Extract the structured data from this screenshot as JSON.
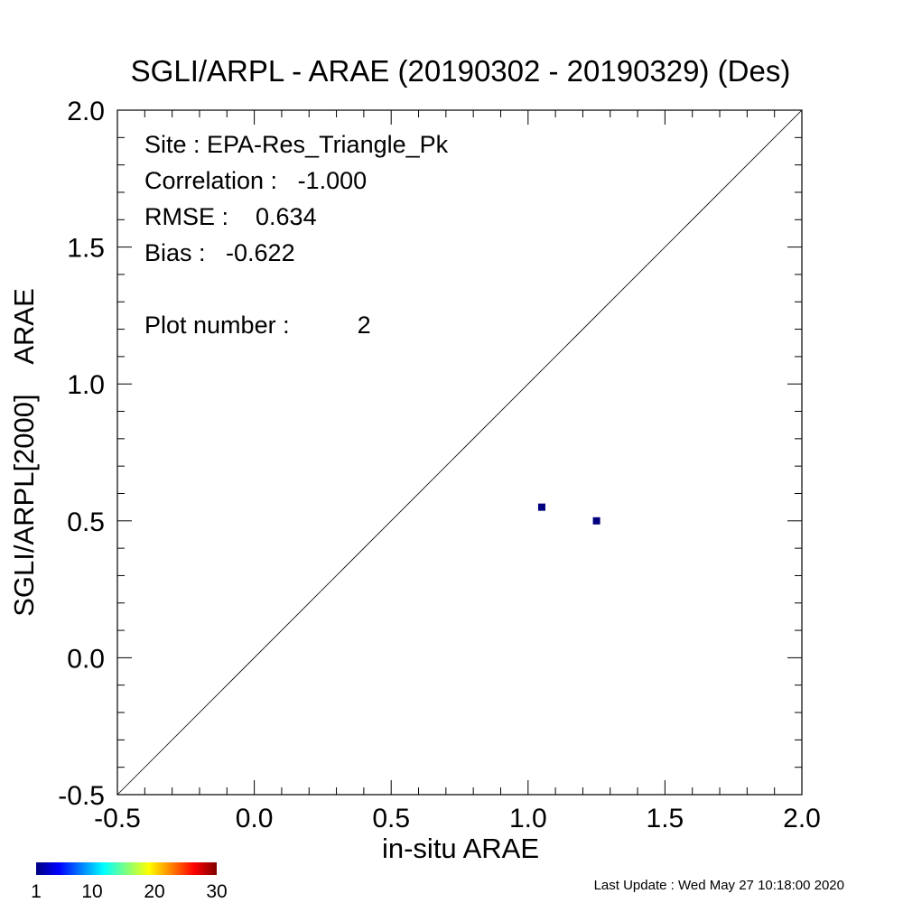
{
  "chart_data": {
    "type": "scatter",
    "title": "SGLI/ARPL - ARAE (20190302 - 20190329) (Des)",
    "xlabel": "in-situ ARAE",
    "ylabel": "SGLI/ARPL[2000]    ARAE",
    "xlim": [
      -0.5,
      2.0
    ],
    "ylim": [
      -0.5,
      2.0
    ],
    "xticks": [
      "-0.5",
      "0.0",
      "0.5",
      "1.0",
      "1.5",
      "2.0"
    ],
    "yticks": [
      "-0.5",
      "0.0",
      "0.5",
      "1.0",
      "1.5",
      "2.0"
    ],
    "one_to_one_line": true,
    "grid": false,
    "points": [
      {
        "x": 1.05,
        "y": 0.55,
        "count": 1
      },
      {
        "x": 1.25,
        "y": 0.5,
        "count": 1
      }
    ],
    "point_color": "#00007f",
    "stats": {
      "site": "Site : EPA-Res_Triangle_Pk",
      "correlation": "Correlation :   -1.000",
      "rmse": "RMSE :    0.634",
      "bias": "Bias :   -0.622",
      "plot_number": "Plot number :          2"
    },
    "colorbar": {
      "min": 1,
      "max": 30,
      "ticks": [
        "1",
        "10",
        "20",
        "30"
      ],
      "colormap": "jet"
    },
    "footer": "Last Update : Wed May 27 10:18:00 2020"
  }
}
